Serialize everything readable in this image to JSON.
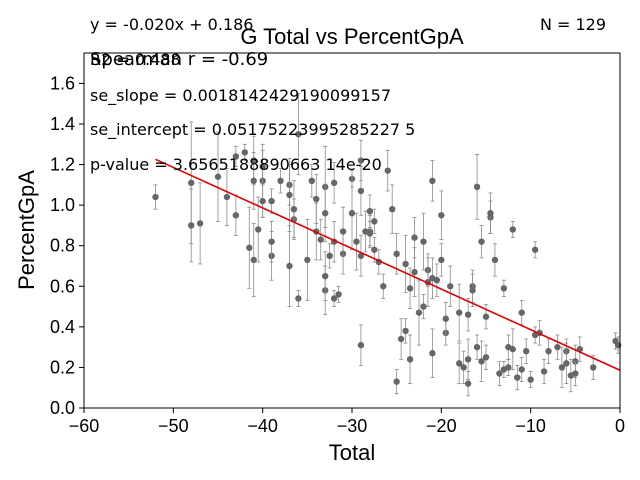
{
  "chart_data": {
    "type": "scatter",
    "title": "G Total vs PercentGpA",
    "xlabel": "Total",
    "ylabel": "PercentGpA",
    "xlim": [
      -60,
      0
    ],
    "ylim": [
      0,
      1.75
    ],
    "x_ticks": [
      "−60",
      "−50",
      "−40",
      "−30",
      "−20",
      "−10",
      "0"
    ],
    "y_ticks": [
      "0.0",
      "0.2",
      "0.4",
      "0.6",
      "0.8",
      "1.0",
      "1.2",
      "1.4",
      "1.6"
    ],
    "grid": false,
    "n_label": "N = 129",
    "annotations": {
      "equation": "y = -0.020x + 0.186",
      "r2": "R2 = 0.488",
      "spearman": "Spearman r = -0.69",
      "se_slope": "se_slope = 0.0018142429190099157",
      "se_intercept": "se_intercept = 0.05175223995285227 5",
      "p_value": "p-value = 3.6565188890663 14e-20"
    },
    "fit_line": {
      "slope": -0.02,
      "intercept": 0.186,
      "x_range": [
        -52,
        0
      ],
      "color": "#e00000"
    },
    "point_color": "#666666",
    "points": [
      [
        -52,
        1.04,
        0.06
      ],
      [
        -48,
        1.11,
        0.3
      ],
      [
        -48,
        0.9,
        0.18
      ],
      [
        -47,
        0.91,
        0.2
      ],
      [
        -45,
        1.14,
        0.22
      ],
      [
        -44,
        1.04,
        0.14
      ],
      [
        -43,
        0.95,
        0.1
      ],
      [
        -43,
        1.24,
        0.05
      ],
      [
        -42,
        1.26,
        0.04
      ],
      [
        -41.5,
        0.79,
        0.2
      ],
      [
        -41,
        1.22,
        0.12
      ],
      [
        -41,
        1.12,
        0.14
      ],
      [
        -41,
        0.73,
        0.18
      ],
      [
        -40.5,
        0.88,
        0.16
      ],
      [
        -40,
        1.12,
        0.18
      ],
      [
        -40,
        1.02,
        0.08
      ],
      [
        -40,
        1.19,
        0.08
      ],
      [
        -39,
        1.02,
        0.06
      ],
      [
        -39,
        0.75,
        0.12
      ],
      [
        -39,
        0.82,
        0.1
      ],
      [
        -38,
        1.12,
        0.06
      ],
      [
        -37,
        1.1,
        0.1
      ],
      [
        -37,
        1.05,
        0.18
      ],
      [
        -37,
        0.7,
        0.2
      ],
      [
        -36.5,
        0.93,
        0.1
      ],
      [
        -36.5,
        0.98,
        0.14
      ],
      [
        -36,
        0.54,
        0.04
      ],
      [
        -36,
        1.35,
        0.2
      ],
      [
        -35,
        0.73,
        0.2
      ],
      [
        -34.5,
        1.12,
        0.08
      ],
      [
        -34,
        0.87,
        0.14
      ],
      [
        -34,
        1.03,
        0.12
      ],
      [
        -33.5,
        0.83,
        0.1
      ],
      [
        -33,
        0.58,
        0.12
      ],
      [
        -33,
        0.65,
        0.12
      ],
      [
        -33,
        1.09,
        0.2
      ],
      [
        -33,
        0.96,
        0.14
      ],
      [
        -32.5,
        0.75,
        0.06
      ],
      [
        -32,
        0.82,
        0.1
      ],
      [
        -32,
        0.54,
        0.04
      ],
      [
        -32,
        1.11,
        0.1
      ],
      [
        -31.5,
        0.56,
        0.04
      ],
      [
        -31,
        0.76,
        0.1
      ],
      [
        -31,
        0.87,
        0.12
      ],
      [
        -30,
        1.13,
        0.04
      ],
      [
        -30,
        0.96,
        0.18
      ],
      [
        -29.5,
        0.82,
        0.14
      ],
      [
        -29,
        0.31,
        0.1
      ],
      [
        -29,
        1.07,
        0.12
      ],
      [
        -29,
        1.22,
        0.1
      ],
      [
        -29,
        0.75,
        0.1
      ],
      [
        -28.5,
        0.87,
        0.1
      ],
      [
        -28,
        0.87,
        0.08
      ],
      [
        -28,
        0.97,
        0.08
      ],
      [
        -28,
        0.86,
        0.06
      ],
      [
        -27.5,
        0.78,
        0.06
      ],
      [
        -27.5,
        0.92,
        0.06
      ],
      [
        -27,
        0.72,
        0.06
      ],
      [
        -26.5,
        0.6,
        0.06
      ],
      [
        -26,
        1.17,
        0.1
      ],
      [
        -25.5,
        0.98,
        0.12
      ],
      [
        -25,
        0.13,
        0.06
      ],
      [
        -25,
        0.76,
        0.1
      ],
      [
        -24.5,
        0.34,
        0.1
      ],
      [
        -24,
        0.71,
        0.14
      ],
      [
        -24,
        0.38,
        0.06
      ],
      [
        -23.5,
        0.24,
        0.12
      ],
      [
        -23.5,
        0.59,
        0.1
      ],
      [
        -23,
        0.84,
        0.1
      ],
      [
        -23,
        0.67,
        0.12
      ],
      [
        -22.5,
        0.47,
        0.16
      ],
      [
        -22,
        0.82,
        0.14
      ],
      [
        -22,
        0.5,
        0.06
      ],
      [
        -21.5,
        0.68,
        0.08
      ],
      [
        -21.5,
        0.62,
        0.12
      ],
      [
        -21,
        1.12,
        0.1
      ],
      [
        -21,
        0.64,
        0.1
      ],
      [
        -21,
        0.27,
        0.12
      ],
      [
        -20.5,
        0.63,
        0.08
      ],
      [
        -20,
        0.95,
        0.12
      ],
      [
        -20,
        0.73,
        0.08
      ],
      [
        -19.5,
        0.37,
        0.06
      ],
      [
        -19.5,
        0.44,
        0.08
      ],
      [
        -19,
        0.6,
        0.1
      ],
      [
        -18,
        0.47,
        0.14
      ],
      [
        -18,
        0.22,
        0.1
      ],
      [
        -17.5,
        0.2,
        0.08
      ],
      [
        -17,
        0.46,
        0.08
      ],
      [
        -17,
        0.12,
        0.06
      ],
      [
        -17,
        0.24,
        0.1
      ],
      [
        -16.5,
        0.6,
        0.08
      ],
      [
        -16.5,
        0.58,
        0.08
      ],
      [
        -16,
        0.3,
        0.06
      ],
      [
        -16,
        1.09,
        0.16
      ],
      [
        -15.5,
        0.23,
        0.1
      ],
      [
        -15.5,
        0.82,
        0.08
      ],
      [
        -15,
        0.45,
        0.06
      ],
      [
        -15,
        0.25,
        0.06
      ],
      [
        -14.5,
        0.94,
        0.08
      ],
      [
        -14.5,
        0.96,
        0.1
      ],
      [
        -14,
        0.73,
        0.08
      ],
      [
        -13.5,
        0.17,
        0.06
      ],
      [
        -13,
        0.59,
        0.04
      ],
      [
        -13,
        0.19,
        0.04
      ],
      [
        -12.5,
        0.2,
        0.04
      ],
      [
        -12.5,
        0.3,
        0.06
      ],
      [
        -12,
        0.29,
        0.1
      ],
      [
        -12,
        0.88,
        0.04
      ],
      [
        -11.5,
        0.15,
        0.06
      ],
      [
        -11,
        0.19,
        0.06
      ],
      [
        -11,
        0.47,
        0.06
      ],
      [
        -10.5,
        0.28,
        0.06
      ],
      [
        -10,
        0.14,
        0.04
      ],
      [
        -9.5,
        0.78,
        0.04
      ],
      [
        -9.5,
        0.36,
        0.04
      ],
      [
        -9,
        0.37,
        0.06
      ],
      [
        -8,
        0.28,
        0.06
      ],
      [
        -6.5,
        0.2,
        0.1
      ],
      [
        -6,
        0.28,
        0.06
      ],
      [
        -6,
        0.22,
        0.1
      ],
      [
        -5.5,
        0.16,
        0.08
      ],
      [
        -5,
        0.23,
        0.08
      ],
      [
        -5,
        0.17,
        0.06
      ],
      [
        -4.5,
        0.29,
        0.06
      ],
      [
        -3,
        0.2,
        0.06
      ],
      [
        -0.5,
        0.33,
        0.04
      ],
      [
        -0.2,
        0.31,
        0.04
      ],
      [
        -7,
        0.3,
        0.06
      ],
      [
        -8.5,
        0.18,
        0.06
      ]
    ]
  }
}
